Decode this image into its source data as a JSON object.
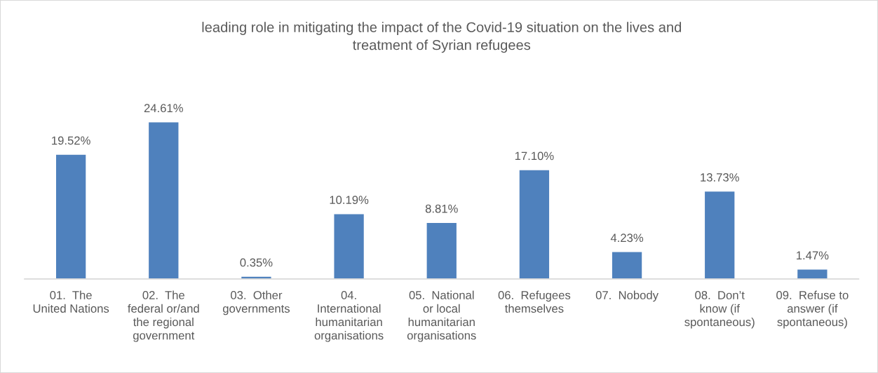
{
  "chart_data": {
    "type": "bar",
    "title": "leading role in mitigating the impact of the Covid-19 situation on the lives and\ntreatment of Syrian refugees",
    "categories": [
      "01.  The\nUnited Nations",
      "02.  The\nfederal or/and\nthe regional\ngovernment",
      "03.  Other\ngovernments",
      "04.\nInternational\nhumanitarian\norganisations",
      "05.  National\nor local\nhumanitarian\norganisations",
      "06.  Refugees\nthemselves",
      "07.  Nobody",
      "08.  Don’t\nknow (if\nspontaneous)",
      "09.  Refuse to\nanswer (if\nspontaneous)"
    ],
    "values": [
      19.52,
      24.61,
      0.35,
      10.19,
      8.81,
      17.1,
      4.23,
      13.73,
      1.47
    ],
    "value_labels": [
      "19.52%",
      "24.61%",
      "0.35%",
      "10.19%",
      "8.81%",
      "17.10%",
      "4.23%",
      "13.73%",
      "1.47%"
    ],
    "color": "#4f81bd"
  }
}
